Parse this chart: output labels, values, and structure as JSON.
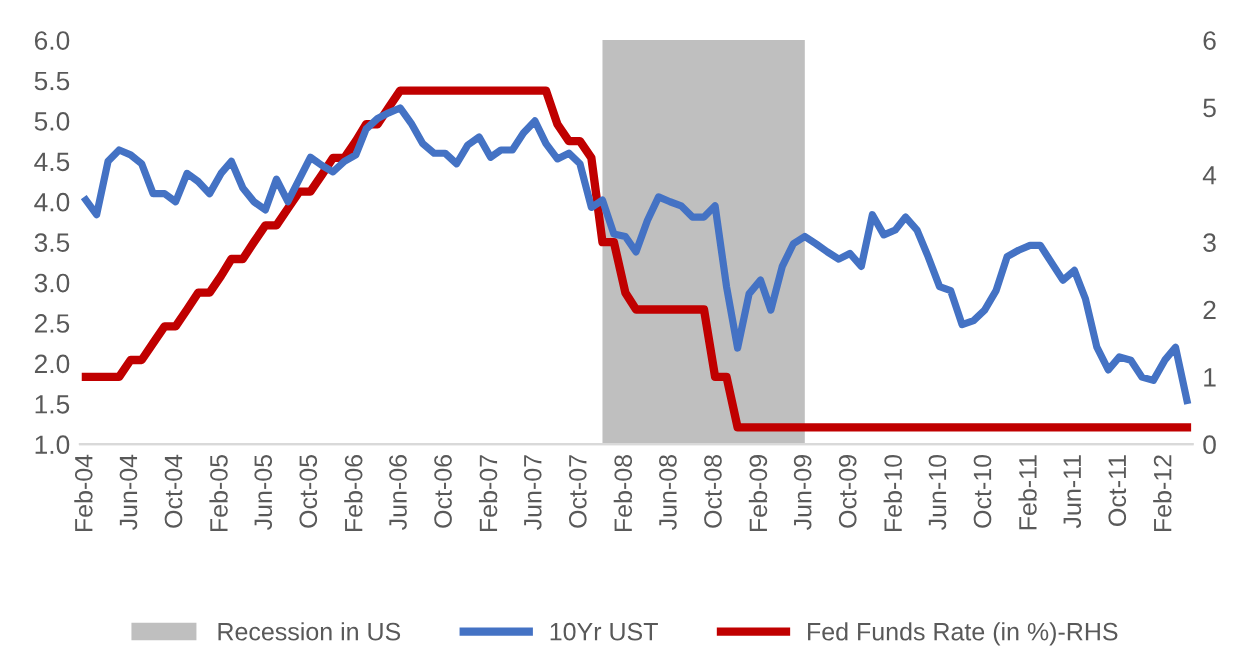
{
  "chart_data": {
    "type": "line",
    "x": [
      "2004-02",
      "2004-03",
      "2004-04",
      "2004-05",
      "2004-06",
      "2004-07",
      "2004-08",
      "2004-09",
      "2004-10",
      "2004-11",
      "2004-12",
      "2005-01",
      "2005-02",
      "2005-03",
      "2005-04",
      "2005-05",
      "2005-06",
      "2005-07",
      "2005-08",
      "2005-09",
      "2005-10",
      "2005-11",
      "2005-12",
      "2006-01",
      "2006-02",
      "2006-03",
      "2006-04",
      "2006-05",
      "2006-06",
      "2006-07",
      "2006-08",
      "2006-09",
      "2006-10",
      "2006-11",
      "2006-12",
      "2007-01",
      "2007-02",
      "2007-03",
      "2007-04",
      "2007-05",
      "2007-06",
      "2007-07",
      "2007-08",
      "2007-09",
      "2007-10",
      "2007-11",
      "2007-12",
      "2008-01",
      "2008-02",
      "2008-03",
      "2008-04",
      "2008-05",
      "2008-06",
      "2008-07",
      "2008-08",
      "2008-09",
      "2008-10",
      "2008-11",
      "2008-12",
      "2009-01",
      "2009-02",
      "2009-03",
      "2009-04",
      "2009-05",
      "2009-06",
      "2009-07",
      "2009-08",
      "2009-09",
      "2009-10",
      "2009-11",
      "2009-12",
      "2010-01",
      "2010-02",
      "2010-03",
      "2010-04",
      "2010-05",
      "2010-06",
      "2010-07",
      "2010-08",
      "2010-09",
      "2010-10",
      "2010-11",
      "2010-12",
      "2011-01",
      "2011-02",
      "2011-03",
      "2011-04",
      "2011-05",
      "2011-06",
      "2011-07",
      "2011-08",
      "2011-09",
      "2011-10",
      "2011-11",
      "2011-12",
      "2012-01",
      "2012-02",
      "2012-03",
      "2012-04"
    ],
    "series": [
      {
        "name": "10Yr UST",
        "color": "#4472c4",
        "values": [
          4.02,
          3.84,
          4.5,
          4.64,
          4.58,
          4.47,
          4.1,
          4.1,
          4.0,
          4.35,
          4.25,
          4.1,
          4.35,
          4.5,
          4.17,
          4.0,
          3.9,
          4.28,
          4.0,
          4.28,
          4.55,
          4.45,
          4.37,
          4.5,
          4.58,
          4.9,
          5.03,
          5.1,
          5.16,
          4.97,
          4.72,
          4.6,
          4.6,
          4.47,
          4.7,
          4.8,
          4.55,
          4.64,
          4.64,
          4.85,
          5.0,
          4.72,
          4.53,
          4.6,
          4.47,
          3.93,
          4.02,
          3.6,
          3.57,
          3.38,
          3.77,
          4.06,
          4.0,
          3.95,
          3.81,
          3.81,
          3.95,
          2.95,
          2.19,
          2.86,
          3.03,
          2.66,
          3.2,
          3.48,
          3.57,
          3.48,
          3.38,
          3.29,
          3.36,
          3.2,
          3.84,
          3.59,
          3.65,
          3.81,
          3.65,
          3.32,
          2.95,
          2.9,
          2.48,
          2.53,
          2.66,
          2.9,
          3.32,
          3.4,
          3.46,
          3.46,
          3.24,
          3.03,
          3.15,
          2.8,
          2.2,
          1.92,
          2.08,
          2.04,
          1.83,
          1.79,
          2.04,
          2.2,
          1.54
        ]
      },
      {
        "name": "Fed Funds Rate (in %)-RHS",
        "axis": "y2",
        "color": "#c00000",
        "values": [
          1.0,
          1.0,
          1.0,
          1.0,
          1.25,
          1.25,
          1.5,
          1.75,
          1.75,
          2.0,
          2.25,
          2.25,
          2.5,
          2.75,
          2.75,
          3.0,
          3.25,
          3.25,
          3.5,
          3.75,
          3.75,
          4.0,
          4.25,
          4.25,
          4.5,
          4.75,
          4.75,
          5.0,
          5.25,
          5.25,
          5.25,
          5.25,
          5.25,
          5.25,
          5.25,
          5.25,
          5.25,
          5.25,
          5.25,
          5.25,
          5.25,
          5.25,
          4.75,
          4.5,
          4.5,
          4.25,
          3.0,
          3.0,
          2.25,
          2.0,
          2.0,
          2.0,
          2.0,
          2.0,
          2.0,
          2.0,
          1.0,
          1.0,
          0.25,
          0.25,
          0.25,
          0.25,
          0.25,
          0.25,
          0.25,
          0.25,
          0.25,
          0.25,
          0.25,
          0.25,
          0.25,
          0.25,
          0.25,
          0.25,
          0.25,
          0.25,
          0.25,
          0.25,
          0.25,
          0.25,
          0.25,
          0.25,
          0.25,
          0.25,
          0.25,
          0.25,
          0.25,
          0.25,
          0.25,
          0.25,
          0.25,
          0.25,
          0.25,
          0.25,
          0.25,
          0.25,
          0.25,
          0.25,
          0.25
        ]
      }
    ],
    "bands": [
      {
        "axis": "x",
        "from": "2007-12",
        "to": "2009-06",
        "label": "Recession in US",
        "color": "#bfbfbf"
      }
    ],
    "xlim": [
      "2004-01-16",
      "2012-04-16"
    ],
    "xticks": [
      {
        "value": "2004-02",
        "label": "Feb-04"
      },
      {
        "value": "2004-06",
        "label": "Jun-04"
      },
      {
        "value": "2004-10",
        "label": "Oct-04"
      },
      {
        "value": "2005-02",
        "label": "Feb-05"
      },
      {
        "value": "2005-06",
        "label": "Jun-05"
      },
      {
        "value": "2005-10",
        "label": "Oct-05"
      },
      {
        "value": "2006-02",
        "label": "Feb-06"
      },
      {
        "value": "2006-06",
        "label": "Jun-06"
      },
      {
        "value": "2006-10",
        "label": "Oct-06"
      },
      {
        "value": "2007-02",
        "label": "Feb-07"
      },
      {
        "value": "2007-06",
        "label": "Jun-07"
      },
      {
        "value": "2007-10",
        "label": "Oct-07"
      },
      {
        "value": "2008-02",
        "label": "Feb-08"
      },
      {
        "value": "2008-06",
        "label": "Jun-08"
      },
      {
        "value": "2008-10",
        "label": "Oct-08"
      },
      {
        "value": "2009-02",
        "label": "Feb-09"
      },
      {
        "value": "2009-06",
        "label": "Jun-09"
      },
      {
        "value": "2009-10",
        "label": "Oct-09"
      },
      {
        "value": "2010-02",
        "label": "Feb-10"
      },
      {
        "value": "2010-06",
        "label": "Jun-10"
      },
      {
        "value": "2010-10",
        "label": "Oct-10"
      },
      {
        "value": "2011-02",
        "label": "Feb-11"
      },
      {
        "value": "2011-06",
        "label": "Jun-11"
      },
      {
        "value": "2011-10",
        "label": "Oct-11"
      },
      {
        "value": "2012-02",
        "label": "Feb-12"
      }
    ],
    "ylim": [
      1,
      6
    ],
    "yticks": [
      {
        "value": 1,
        "label": "1.0"
      },
      {
        "value": 1.5,
        "label": "1.5"
      },
      {
        "value": 2,
        "label": "2.0"
      },
      {
        "value": 2.5,
        "label": "2.5"
      },
      {
        "value": 3,
        "label": "3.0"
      },
      {
        "value": 3.5,
        "label": "3.5"
      },
      {
        "value": 4,
        "label": "4.0"
      },
      {
        "value": 4.5,
        "label": "4.5"
      },
      {
        "value": 5,
        "label": "5.0"
      },
      {
        "value": 5.5,
        "label": "5.5"
      },
      {
        "value": 6,
        "label": "6.0"
      }
    ],
    "y2lim": [
      0,
      6
    ],
    "y2ticks": [
      0,
      1,
      2,
      3,
      4,
      5,
      6
    ],
    "grid": false,
    "legend": "bottom",
    "marker": "none",
    "line_style": "solid"
  }
}
